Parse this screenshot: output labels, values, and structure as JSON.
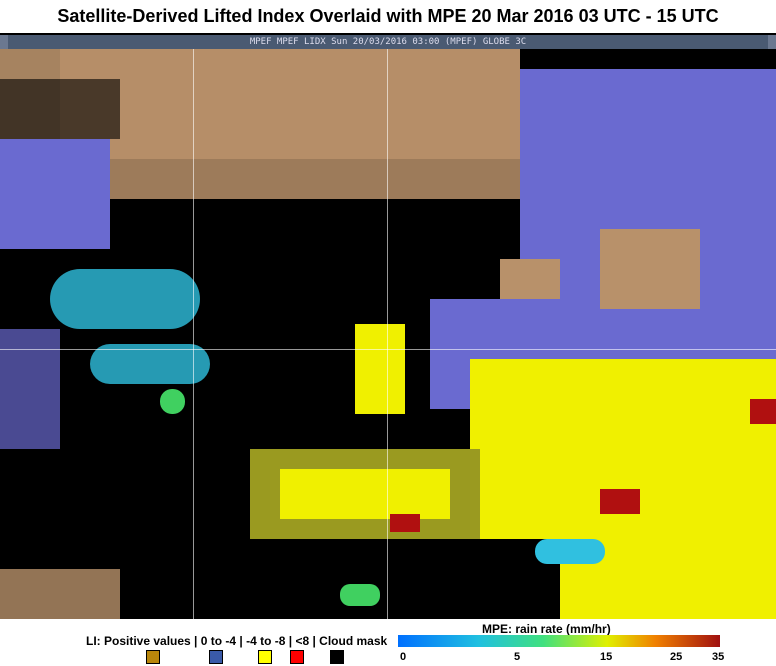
{
  "title": "Satellite-Derived Lifted Index Overlaid with MPE  20 Mar 2016 03 UTC - 15 UTC",
  "header_strip": "MPEF MPEF LIDX Sun 20/03/2016 03:00 (MPEF) GLOBE 3C",
  "legend": {
    "li_label": "LI: Positive values  |  0 to -4 | -4 to -8 | <8 | Cloud mask",
    "li_swatches": [
      {
        "label": "Positive values",
        "color": "#b8860b"
      },
      {
        "label": "0 to -4",
        "color": "#3a5aa8"
      },
      {
        "label": "-4 to -8",
        "color": "#ffff00"
      },
      {
        "label": "<8",
        "color": "#ff0000"
      },
      {
        "label": "Cloud mask",
        "color": "#000000"
      }
    ],
    "mpe_label": "MPE: rain rate (mm/hr)",
    "mpe_ticks": [
      "0",
      "5",
      "15",
      "25",
      "35"
    ]
  }
}
